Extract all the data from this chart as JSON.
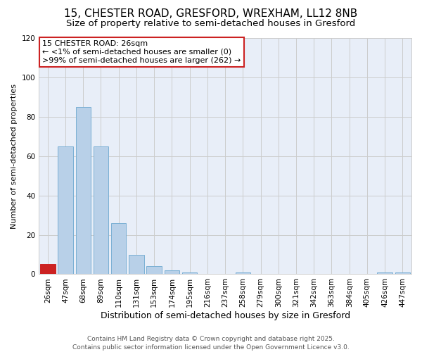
{
  "title": "15, CHESTER ROAD, GRESFORD, WREXHAM, LL12 8NB",
  "subtitle": "Size of property relative to semi-detached houses in Gresford",
  "xlabel": "Distribution of semi-detached houses by size in Gresford",
  "ylabel": "Number of semi-detached properties",
  "bin_labels": [
    "26sqm",
    "47sqm",
    "68sqm",
    "89sqm",
    "110sqm",
    "131sqm",
    "153sqm",
    "174sqm",
    "195sqm",
    "216sqm",
    "237sqm",
    "258sqm",
    "279sqm",
    "300sqm",
    "321sqm",
    "342sqm",
    "363sqm",
    "384sqm",
    "405sqm",
    "426sqm",
    "447sqm"
  ],
  "bar_heights": [
    5,
    65,
    85,
    65,
    26,
    10,
    4,
    2,
    1,
    0,
    0,
    1,
    0,
    0,
    0,
    0,
    0,
    0,
    0,
    1,
    1
  ],
  "bar_color": "#b8d0e8",
  "bar_edge_color": "#7aafd4",
  "highlight_bin": 0,
  "highlight_color": "#cc2222",
  "highlight_edge_color": "#cc2222",
  "annotation_title": "15 CHESTER ROAD: 26sqm",
  "annotation_line1": "← <1% of semi-detached houses are smaller (0)",
  "annotation_line2": ">99% of semi-detached houses are larger (262) →",
  "annotation_box_facecolor": "#ffffff",
  "annotation_box_edge": "#cc2222",
  "ylim": [
    0,
    120
  ],
  "yticks": [
    0,
    20,
    40,
    60,
    80,
    100,
    120
  ],
  "grid_color": "#cccccc",
  "plot_bg_color": "#e8eef8",
  "fig_bg_color": "#ffffff",
  "footer_line1": "Contains HM Land Registry data © Crown copyright and database right 2025.",
  "footer_line2": "Contains public sector information licensed under the Open Government Licence v3.0.",
  "title_fontsize": 11,
  "subtitle_fontsize": 9.5,
  "xlabel_fontsize": 9,
  "ylabel_fontsize": 8,
  "tick_fontsize": 7.5,
  "annotation_fontsize": 8,
  "footer_fontsize": 6.5
}
